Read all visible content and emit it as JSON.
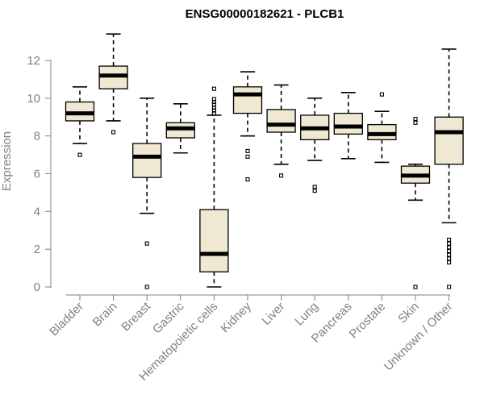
{
  "chart_data": {
    "type": "boxplot",
    "title": "ENSG00000182621 - PLCB1",
    "ylabel": "Expression",
    "xlabel": "",
    "ylim": [
      0,
      13.5
    ],
    "yticks": [
      0,
      2,
      4,
      6,
      8,
      10,
      12
    ],
    "grid": false,
    "categories": [
      "Bladder",
      "Brain",
      "Breast",
      "Gastric",
      "Hematopoietic cells",
      "Kidney",
      "Liver",
      "Lung",
      "Pancreas",
      "Prostate",
      "Skin",
      "Unknown / Other"
    ],
    "boxes": [
      {
        "category": "Bladder",
        "whisker_low": 7.6,
        "q1": 8.8,
        "median": 9.2,
        "q3": 9.8,
        "whisker_high": 10.6,
        "outliers": [
          7.0
        ]
      },
      {
        "category": "Brain",
        "whisker_low": 8.8,
        "q1": 10.5,
        "median": 11.2,
        "q3": 11.7,
        "whisker_high": 13.4,
        "outliers": [
          8.2
        ]
      },
      {
        "category": "Breast",
        "whisker_low": 3.9,
        "q1": 5.8,
        "median": 6.9,
        "q3": 7.6,
        "whisker_high": 10.0,
        "outliers": [
          2.3,
          0.0
        ]
      },
      {
        "category": "Gastric",
        "whisker_low": 7.1,
        "q1": 7.9,
        "median": 8.4,
        "q3": 8.7,
        "whisker_high": 9.7,
        "outliers": []
      },
      {
        "category": "Hematopoietic cells",
        "whisker_low": 0.0,
        "q1": 0.8,
        "median": 1.75,
        "q3": 4.1,
        "whisker_high": 9.1,
        "outliers": [
          9.2,
          9.35,
          9.5,
          9.65,
          9.8,
          9.95,
          10.5
        ]
      },
      {
        "category": "Kidney",
        "whisker_low": 8.0,
        "q1": 9.2,
        "median": 10.2,
        "q3": 10.6,
        "whisker_high": 11.4,
        "outliers": [
          7.2,
          6.9,
          5.7
        ]
      },
      {
        "category": "Liver",
        "whisker_low": 6.5,
        "q1": 8.2,
        "median": 8.6,
        "q3": 9.4,
        "whisker_high": 10.7,
        "outliers": [
          5.9
        ]
      },
      {
        "category": "Lung",
        "whisker_low": 6.7,
        "q1": 7.8,
        "median": 8.4,
        "q3": 9.1,
        "whisker_high": 10.0,
        "outliers": [
          5.3,
          5.1
        ]
      },
      {
        "category": "Pancreas",
        "whisker_low": 6.8,
        "q1": 8.1,
        "median": 8.5,
        "q3": 9.2,
        "whisker_high": 10.3,
        "outliers": []
      },
      {
        "category": "Prostate",
        "whisker_low": 6.6,
        "q1": 7.8,
        "median": 8.1,
        "q3": 8.6,
        "whisker_high": 9.3,
        "outliers": [
          10.2
        ]
      },
      {
        "category": "Skin",
        "whisker_low": 4.6,
        "q1": 5.5,
        "median": 5.9,
        "q3": 6.4,
        "whisker_high": 6.5,
        "outliers": [
          8.9,
          8.7,
          0.0
        ]
      },
      {
        "category": "Unknown / Other",
        "whisker_low": 3.4,
        "q1": 6.5,
        "median": 8.2,
        "q3": 9.0,
        "whisker_high": 12.6,
        "outliers": [
          2.5,
          2.3,
          2.1,
          1.9,
          1.7,
          1.5,
          1.3,
          0.0
        ]
      }
    ],
    "colors": {
      "box_fill": "#efe8d2",
      "median": "#000000",
      "axis": "#808080"
    }
  }
}
